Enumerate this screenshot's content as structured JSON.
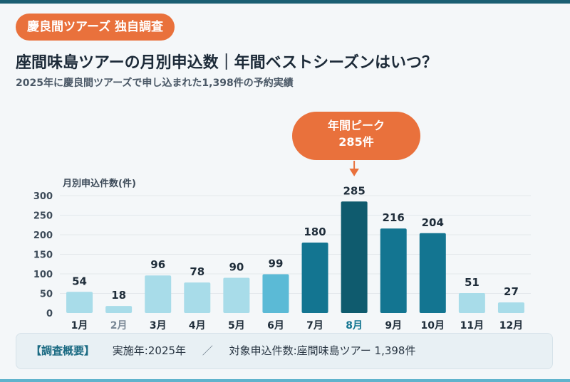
{
  "header": {
    "badge": "慶良間ツアーズ 独自調査",
    "title": "座間味島ツアーの月別申込数｜年間ベストシーズンはいつ？",
    "subtitle": "2025年に慶良間ツアーズで申し込まれた1,398件の予約実績"
  },
  "callout": {
    "title": "年間ピーク",
    "value": "285件"
  },
  "summary": {
    "label": "【調査概要】",
    "year": "実施年:2025年",
    "separator": "／",
    "target": "対象申込件数:座間味島ツアー 1,398件"
  },
  "colors": {
    "light": "#a8dce9",
    "mid": "#5bbad6",
    "dark": "#137591",
    "peak": "#0f5b6e",
    "accent": "#e9713c",
    "grid": "#e3e8ec"
  },
  "chart_data": {
    "type": "bar",
    "ylabel": "月別申込件数(件)",
    "categories": [
      "1月",
      "2月",
      "3月",
      "4月",
      "5月",
      "6月",
      "7月",
      "8月",
      "9月",
      "10月",
      "11月",
      "12月"
    ],
    "values": [
      54,
      18,
      96,
      78,
      90,
      99,
      180,
      285,
      216,
      204,
      51,
      27
    ],
    "bar_shades": [
      "light",
      "light",
      "light",
      "light",
      "light",
      "mid",
      "dark",
      "peak",
      "dark",
      "dark",
      "light",
      "light"
    ],
    "highlight_category": "8月",
    "ylim": [
      0,
      300
    ],
    "yticks": [
      0,
      50,
      100,
      150,
      200,
      250,
      300
    ],
    "grid": true
  }
}
